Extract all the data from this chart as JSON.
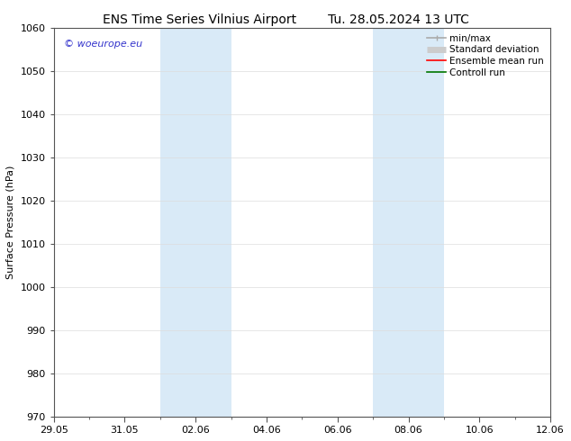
{
  "title_left": "ENS Time Series Vilnius Airport",
  "title_right": "Tu. 28.05.2024 13 UTC",
  "ylabel": "Surface Pressure (hPa)",
  "ylim": [
    970,
    1060
  ],
  "yticks": [
    970,
    980,
    990,
    1000,
    1010,
    1020,
    1030,
    1040,
    1050,
    1060
  ],
  "xtick_labels": [
    "29.05",
    "31.05",
    "02.06",
    "04.06",
    "06.06",
    "08.06",
    "10.06",
    "12.06"
  ],
  "xtick_positions": [
    0.0,
    2.0,
    4.0,
    6.0,
    8.0,
    10.0,
    12.0,
    14.0
  ],
  "xmin": 0.0,
  "xmax": 14.0,
  "shaded_bands": [
    {
      "xmin": 3.0,
      "xmax": 5.0
    },
    {
      "xmin": 9.0,
      "xmax": 11.0
    }
  ],
  "shade_color": "#d9eaf7",
  "watermark_text": "© woeurope.eu",
  "watermark_color": "#3333cc",
  "legend_items": [
    {
      "label": "min/max",
      "color": "#aaaaaa",
      "lw": 1.2
    },
    {
      "label": "Standard deviation",
      "color": "#cccccc",
      "lw": 5
    },
    {
      "label": "Ensemble mean run",
      "color": "#ff0000",
      "lw": 1.2
    },
    {
      "label": "Controll run",
      "color": "#007700",
      "lw": 1.2
    }
  ],
  "bg_color": "#ffffff",
  "spine_color": "#555555",
  "title_fontsize": 10,
  "tick_fontsize": 8,
  "ylabel_fontsize": 8,
  "legend_fontsize": 7.5,
  "watermark_fontsize": 8
}
